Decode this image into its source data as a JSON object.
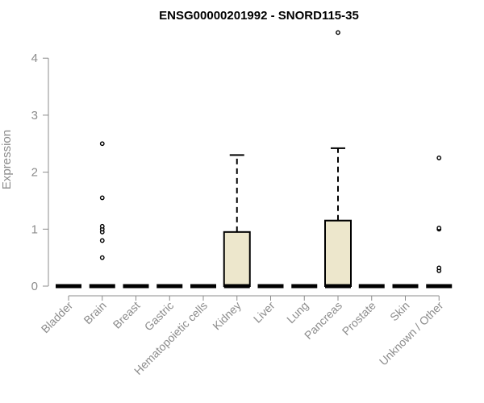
{
  "chart_data": {
    "type": "boxplot",
    "title": "ENSG00000201992 - SNORD115-35",
    "xlabel": "",
    "ylabel": "Expression",
    "ylim": [
      0,
      4.4
    ],
    "y_ticks": [
      0,
      1,
      2,
      3,
      4
    ],
    "grid": false,
    "box_fill": "#ede7cc",
    "categories": [
      "Bladder",
      "Brain",
      "Breast",
      "Gastric",
      "Hematopoietic cells",
      "Kidney",
      "Liver",
      "Lung",
      "Pancreas",
      "Prostate",
      "Skin",
      "Unknown / Other"
    ],
    "boxes": [
      {
        "category": "Bladder",
        "q1": 0,
        "median": 0,
        "q3": 0,
        "whisker_low": 0,
        "whisker_high": 0,
        "outliers": []
      },
      {
        "category": "Brain",
        "q1": 0,
        "median": 0,
        "q3": 0,
        "whisker_low": 0,
        "whisker_high": 0,
        "outliers": [
          0.5,
          0.8,
          0.95,
          1.0,
          1.05,
          1.55,
          2.5
        ]
      },
      {
        "category": "Breast",
        "q1": 0,
        "median": 0,
        "q3": 0,
        "whisker_low": 0,
        "whisker_high": 0,
        "outliers": []
      },
      {
        "category": "Gastric",
        "q1": 0,
        "median": 0,
        "q3": 0,
        "whisker_low": 0,
        "whisker_high": 0,
        "outliers": []
      },
      {
        "category": "Hematopoietic cells",
        "q1": 0,
        "median": 0,
        "q3": 0,
        "whisker_low": 0,
        "whisker_high": 0,
        "outliers": []
      },
      {
        "category": "Kidney",
        "q1": 0,
        "median": 0,
        "q3": 0.95,
        "whisker_low": 0,
        "whisker_high": 2.3,
        "outliers": []
      },
      {
        "category": "Liver",
        "q1": 0,
        "median": 0,
        "q3": 0,
        "whisker_low": 0,
        "whisker_high": 0,
        "outliers": []
      },
      {
        "category": "Lung",
        "q1": 0,
        "median": 0,
        "q3": 0,
        "whisker_low": 0,
        "whisker_high": 0,
        "outliers": []
      },
      {
        "category": "Pancreas",
        "q1": 0,
        "median": 0,
        "q3": 1.15,
        "whisker_low": 0,
        "whisker_high": 2.42,
        "outliers": [
          4.45
        ]
      },
      {
        "category": "Prostate",
        "q1": 0,
        "median": 0,
        "q3": 0,
        "whisker_low": 0,
        "whisker_high": 0,
        "outliers": []
      },
      {
        "category": "Skin",
        "q1": 0,
        "median": 0,
        "q3": 0,
        "whisker_low": 0,
        "whisker_high": 0,
        "outliers": []
      },
      {
        "category": "Unknown / Other",
        "q1": 0,
        "median": 0,
        "q3": 0,
        "whisker_low": 0,
        "whisker_high": 0,
        "outliers": [
          0.27,
          0.32,
          1.0,
          1.02,
          2.25
        ]
      }
    ]
  }
}
